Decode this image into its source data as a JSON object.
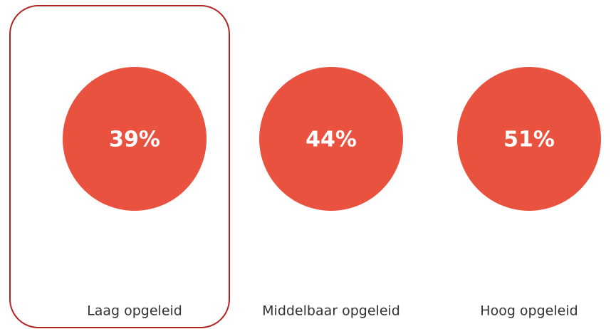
{
  "chart_data": {
    "type": "dot",
    "categories": [
      "Laag opgeleid",
      "Middelbaar opgeleid",
      "Hoog opgeleid"
    ],
    "values": [
      39,
      44,
      51
    ],
    "value_labels": [
      "39%",
      "44%",
      "51%"
    ],
    "color": "#e8523f"
  }
}
